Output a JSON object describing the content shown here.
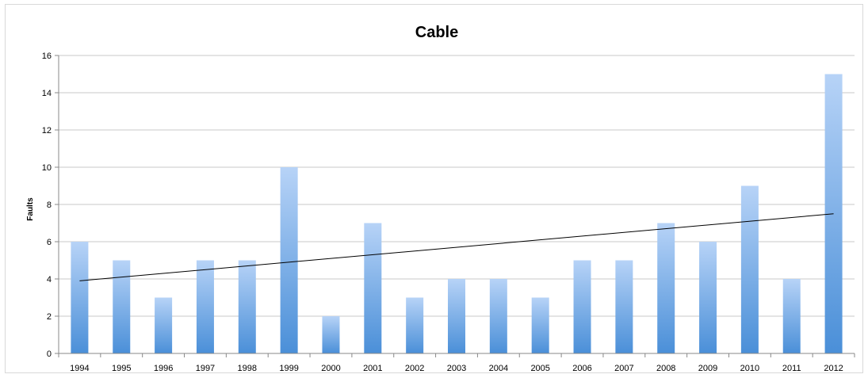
{
  "chart_data": {
    "type": "bar",
    "title": "Cable",
    "xlabel": "",
    "ylabel": "Faults",
    "ylim": [
      0,
      16
    ],
    "yticks": [
      0,
      2,
      4,
      6,
      8,
      10,
      12,
      14,
      16
    ],
    "grid": true,
    "legend": "none",
    "categories": [
      "1994",
      "1995",
      "1996",
      "1997",
      "1998",
      "1999",
      "2000",
      "2001",
      "2002",
      "2003",
      "2004",
      "2005",
      "2006",
      "2007",
      "2008",
      "2009",
      "2010",
      "2011",
      "2012"
    ],
    "values": [
      6,
      5,
      3,
      5,
      5,
      10,
      2,
      7,
      3,
      4,
      4,
      3,
      5,
      5,
      7,
      6,
      9,
      4,
      15
    ],
    "trendline": {
      "type": "linear",
      "start": 3.9,
      "end": 7.5
    },
    "colors": {
      "bar_top": "#b7d3f7",
      "bar_bottom": "#4a8fd8",
      "grid": "#c8c8c8",
      "trend": "#000000"
    }
  }
}
